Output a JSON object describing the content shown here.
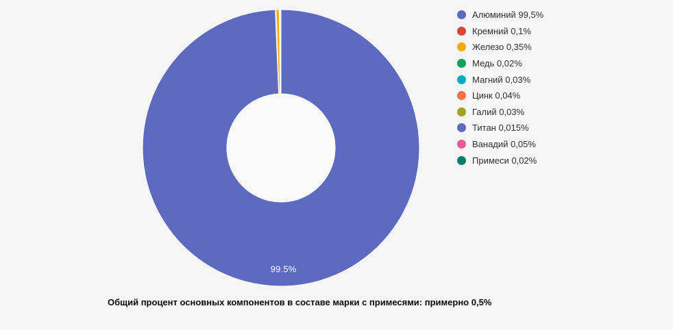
{
  "canvas": {
    "background_color": "#f5f5f5",
    "hole_color": "#fafafa",
    "legend_text_color": "#2f2f2f",
    "slice_label_text_color": "#ffffff"
  },
  "chart_data": {
    "type": "pie",
    "subtype": "donut",
    "legend_position": "right",
    "grid": false,
    "categories": [
      "Алюминий",
      "Кремний",
      "Железо",
      "Медь",
      "Магний",
      "Цинк",
      "Галий",
      "Титан",
      "Ванадий",
      "Примеси"
    ],
    "values": [
      99.5,
      0.1,
      0.35,
      0.02,
      0.03,
      0.04,
      0.03,
      0.015,
      0.05,
      0.02
    ],
    "colors": [
      "#5c6bc0",
      "#db4437",
      "#f1ab00",
      "#12a05b",
      "#00acc1",
      "#fc7047",
      "#a0a223",
      "#5c6bc0",
      "#ed5c8f",
      "#0a7c6c"
    ],
    "legend_labels": [
      "Алюминий 99,5%",
      "Кремний 0,1%",
      "Железо 0,35%",
      "Медь 0,02%",
      "Магний 0,03%",
      "Цинк 0,04%",
      "Галий 0,03%",
      "Титан 0,015%",
      "Ванадий 0,05%",
      "Примеси 0,02%"
    ],
    "slice_label": "99.5%",
    "caption": "Общий процент основных компонентов в составе марки с примесями: примерно 0,5%"
  }
}
